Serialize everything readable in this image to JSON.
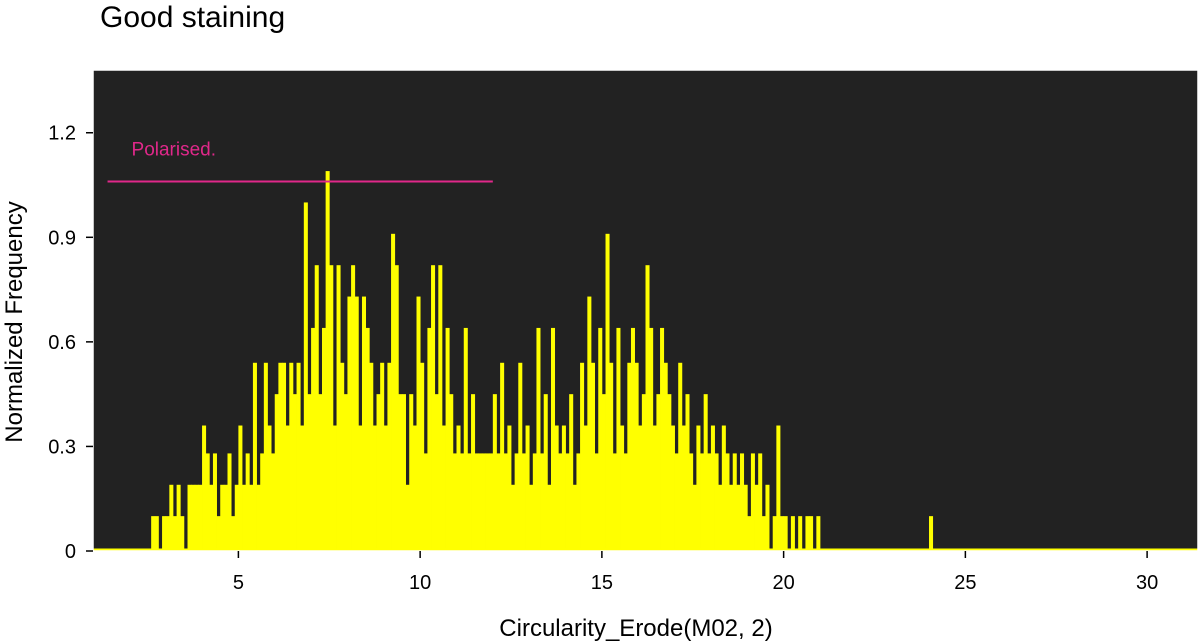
{
  "chart_data": {
    "type": "bar",
    "title": "Good staining",
    "xlabel": "Circularity_Erode(M02, 2)",
    "ylabel": "Normalized Frequency",
    "xlim": [
      1.0,
      31.4
    ],
    "ylim": [
      0,
      1.38
    ],
    "xticks": [
      5,
      10,
      15,
      20,
      25,
      30
    ],
    "yticks": [
      0,
      0.3,
      0.6,
      0.9,
      1.2
    ],
    "ytick_labels": [
      "0",
      "0.3",
      "0.6",
      "0.9",
      "1.2"
    ],
    "bin_width": 0.1,
    "colors": {
      "plot_background": "#222222",
      "bars": "#ffff00",
      "gate": "#e0288a",
      "frame": "#ffffff"
    },
    "gate": {
      "label": "Polarised.",
      "x_start": 1.4,
      "x_end": 12.0,
      "y": 1.06
    },
    "bins": [
      [
        2.6,
        0.1
      ],
      [
        2.7,
        0.1
      ],
      [
        2.8,
        0.0
      ],
      [
        2.9,
        0.1
      ],
      [
        3.0,
        0.1
      ],
      [
        3.1,
        0.19
      ],
      [
        3.2,
        0.1
      ],
      [
        3.3,
        0.19
      ],
      [
        3.4,
        0.1
      ],
      [
        3.5,
        0.0
      ],
      [
        3.6,
        0.19
      ],
      [
        3.7,
        0.19
      ],
      [
        3.8,
        0.19
      ],
      [
        3.9,
        0.19
      ],
      [
        4.0,
        0.36
      ],
      [
        4.1,
        0.28
      ],
      [
        4.2,
        0.19
      ],
      [
        4.3,
        0.28
      ],
      [
        4.4,
        0.1
      ],
      [
        4.5,
        0.19
      ],
      [
        4.6,
        0.19
      ],
      [
        4.7,
        0.28
      ],
      [
        4.8,
        0.1
      ],
      [
        4.9,
        0.19
      ],
      [
        5.0,
        0.36
      ],
      [
        5.1,
        0.19
      ],
      [
        5.2,
        0.28
      ],
      [
        5.3,
        0.19
      ],
      [
        5.4,
        0.54
      ],
      [
        5.5,
        0.19
      ],
      [
        5.6,
        0.28
      ],
      [
        5.7,
        0.54
      ],
      [
        5.8,
        0.36
      ],
      [
        5.9,
        0.28
      ],
      [
        6.0,
        0.45
      ],
      [
        6.1,
        0.54
      ],
      [
        6.2,
        0.54
      ],
      [
        6.3,
        0.36
      ],
      [
        6.4,
        0.54
      ],
      [
        6.5,
        0.45
      ],
      [
        6.6,
        0.54
      ],
      [
        6.7,
        0.36
      ],
      [
        6.8,
        1.0
      ],
      [
        6.9,
        0.45
      ],
      [
        7.0,
        0.64
      ],
      [
        7.1,
        0.82
      ],
      [
        7.2,
        0.45
      ],
      [
        7.3,
        0.64
      ],
      [
        7.4,
        1.09
      ],
      [
        7.5,
        0.82
      ],
      [
        7.6,
        0.36
      ],
      [
        7.7,
        0.82
      ],
      [
        7.8,
        0.54
      ],
      [
        7.9,
        0.45
      ],
      [
        8.0,
        0.73
      ],
      [
        8.1,
        0.82
      ],
      [
        8.2,
        0.73
      ],
      [
        8.3,
        0.36
      ],
      [
        8.4,
        0.73
      ],
      [
        8.5,
        0.64
      ],
      [
        8.6,
        0.54
      ],
      [
        8.7,
        0.36
      ],
      [
        8.8,
        0.45
      ],
      [
        8.9,
        0.54
      ],
      [
        9.0,
        0.36
      ],
      [
        9.1,
        0.54
      ],
      [
        9.2,
        0.91
      ],
      [
        9.3,
        0.82
      ],
      [
        9.4,
        0.45
      ],
      [
        9.5,
        0.45
      ],
      [
        9.6,
        0.19
      ],
      [
        9.7,
        0.45
      ],
      [
        9.8,
        0.36
      ],
      [
        9.9,
        0.73
      ],
      [
        10.0,
        0.54
      ],
      [
        10.1,
        0.28
      ],
      [
        10.2,
        0.64
      ],
      [
        10.3,
        0.82
      ],
      [
        10.4,
        0.45
      ],
      [
        10.5,
        0.82
      ],
      [
        10.6,
        0.36
      ],
      [
        10.7,
        0.64
      ],
      [
        10.8,
        0.45
      ],
      [
        10.9,
        0.28
      ],
      [
        11.0,
        0.36
      ],
      [
        11.1,
        0.28
      ],
      [
        11.2,
        0.64
      ],
      [
        11.3,
        0.28
      ],
      [
        11.4,
        0.45
      ],
      [
        11.5,
        0.28
      ],
      [
        11.6,
        0.28
      ],
      [
        11.7,
        0.28
      ],
      [
        11.8,
        0.28
      ],
      [
        11.9,
        0.28
      ],
      [
        12.0,
        0.45
      ],
      [
        12.1,
        0.28
      ],
      [
        12.2,
        0.54
      ],
      [
        12.3,
        0.28
      ],
      [
        12.4,
        0.36
      ],
      [
        12.5,
        0.19
      ],
      [
        12.6,
        0.28
      ],
      [
        12.7,
        0.54
      ],
      [
        12.8,
        0.28
      ],
      [
        12.9,
        0.36
      ],
      [
        13.0,
        0.19
      ],
      [
        13.1,
        0.28
      ],
      [
        13.2,
        0.64
      ],
      [
        13.3,
        0.28
      ],
      [
        13.4,
        0.45
      ],
      [
        13.5,
        0.19
      ],
      [
        13.6,
        0.64
      ],
      [
        13.7,
        0.36
      ],
      [
        13.8,
        0.28
      ],
      [
        13.9,
        0.36
      ],
      [
        14.0,
        0.28
      ],
      [
        14.1,
        0.45
      ],
      [
        14.2,
        0.19
      ],
      [
        14.3,
        0.28
      ],
      [
        14.4,
        0.54
      ],
      [
        14.5,
        0.36
      ],
      [
        14.6,
        0.73
      ],
      [
        14.7,
        0.54
      ],
      [
        14.8,
        0.28
      ],
      [
        14.9,
        0.64
      ],
      [
        15.0,
        0.45
      ],
      [
        15.1,
        0.91
      ],
      [
        15.2,
        0.54
      ],
      [
        15.3,
        0.28
      ],
      [
        15.4,
        0.64
      ],
      [
        15.5,
        0.36
      ],
      [
        15.6,
        0.28
      ],
      [
        15.7,
        0.54
      ],
      [
        15.8,
        0.64
      ],
      [
        15.9,
        0.54
      ],
      [
        16.0,
        0.36
      ],
      [
        16.1,
        0.45
      ],
      [
        16.2,
        0.82
      ],
      [
        16.3,
        0.64
      ],
      [
        16.4,
        0.36
      ],
      [
        16.5,
        0.45
      ],
      [
        16.6,
        0.64
      ],
      [
        16.7,
        0.54
      ],
      [
        16.8,
        0.45
      ],
      [
        16.9,
        0.36
      ],
      [
        17.0,
        0.28
      ],
      [
        17.1,
        0.54
      ],
      [
        17.2,
        0.36
      ],
      [
        17.3,
        0.45
      ],
      [
        17.4,
        0.28
      ],
      [
        17.5,
        0.19
      ],
      [
        17.6,
        0.36
      ],
      [
        17.7,
        0.28
      ],
      [
        17.8,
        0.45
      ],
      [
        17.9,
        0.28
      ],
      [
        18.0,
        0.36
      ],
      [
        18.1,
        0.28
      ],
      [
        18.2,
        0.19
      ],
      [
        18.3,
        0.36
      ],
      [
        18.4,
        0.28
      ],
      [
        18.5,
        0.19
      ],
      [
        18.6,
        0.28
      ],
      [
        18.7,
        0.19
      ],
      [
        18.8,
        0.28
      ],
      [
        18.9,
        0.19
      ],
      [
        19.0,
        0.1
      ],
      [
        19.1,
        0.28
      ],
      [
        19.2,
        0.19
      ],
      [
        19.3,
        0.28
      ],
      [
        19.4,
        0.1
      ],
      [
        19.5,
        0.19
      ],
      [
        19.6,
        0.0
      ],
      [
        19.7,
        0.1
      ],
      [
        19.8,
        0.36
      ],
      [
        19.9,
        0.1
      ],
      [
        20.0,
        0.1
      ],
      [
        20.1,
        0.0
      ],
      [
        20.2,
        0.1
      ],
      [
        20.3,
        0.0
      ],
      [
        20.4,
        0.1
      ],
      [
        20.5,
        0.0
      ],
      [
        20.6,
        0.1
      ],
      [
        20.7,
        0.1
      ],
      [
        20.8,
        0.0
      ],
      [
        20.9,
        0.1
      ],
      [
        21.0,
        0.0
      ],
      [
        24.0,
        0.1
      ]
    ]
  }
}
